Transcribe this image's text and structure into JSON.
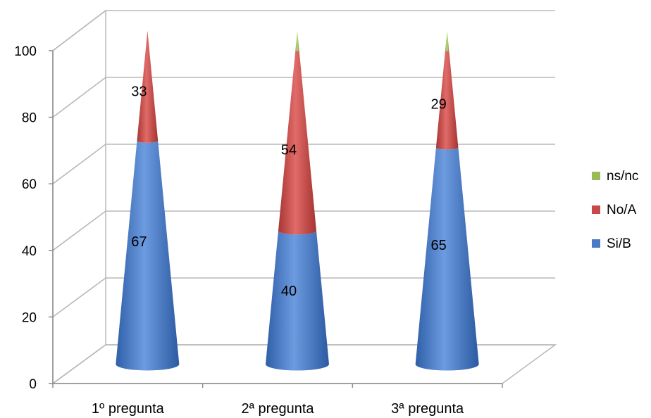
{
  "chart_data": {
    "type": "bar",
    "subtype": "3d-cone-stacked",
    "categories": [
      "1º pregunta",
      "2ª pregunta",
      "3ª pregunta"
    ],
    "series": [
      {
        "name": "Si/B",
        "values": [
          67,
          40,
          65
        ],
        "color": "#4a7bc6"
      },
      {
        "name": "No/A",
        "values": [
          33,
          54,
          29
        ],
        "color": "#c84a48"
      },
      {
        "name": "ns/nc",
        "values": [
          0,
          6,
          6
        ],
        "color": "#9bbb59"
      }
    ],
    "data_labels": {
      "Si/B": [
        "67",
        "40",
        "65"
      ],
      "No/A": [
        "33",
        "54",
        "29"
      ]
    },
    "yticks": [
      "0",
      "20",
      "40",
      "60",
      "80",
      "100"
    ],
    "ylim": [
      0,
      100
    ],
    "grid": true,
    "legend_position": "right"
  }
}
